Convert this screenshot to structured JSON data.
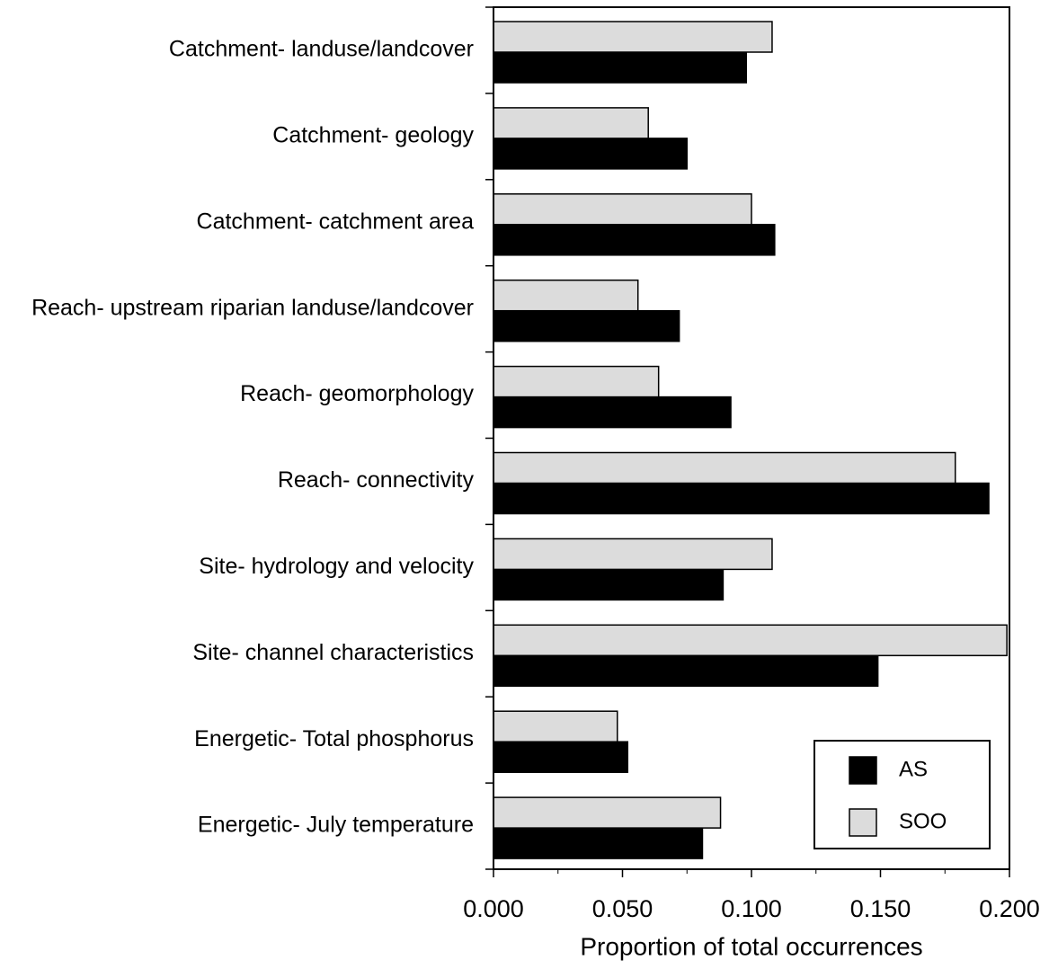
{
  "chart_data": {
    "type": "hbar",
    "xlabel": "Proportion of total occurrences",
    "categories": [
      "Catchment- landuse/landcover",
      "Catchment- geology",
      "Catchment- catchment area",
      "Reach- upstream riparian landuse/landcover",
      "Reach- geomorphology",
      "Reach- connectivity",
      "Site- hydrology and velocity",
      "Site- channel characteristics",
      "Energetic- Total phosphorus",
      "Energetic- July temperature"
    ],
    "series": [
      {
        "name": "AS",
        "color": "#000000",
        "values": [
          0.098,
          0.075,
          0.109,
          0.072,
          0.092,
          0.192,
          0.089,
          0.149,
          0.052,
          0.081
        ]
      },
      {
        "name": "SOO",
        "color": "#dcdcdc",
        "values": [
          0.108,
          0.06,
          0.1,
          0.056,
          0.064,
          0.179,
          0.108,
          0.199,
          0.048,
          0.088
        ]
      }
    ],
    "xlim": [
      0,
      0.2
    ],
    "xticks": [
      {
        "value": 0,
        "label": "0.000"
      },
      {
        "value": 0.05,
        "label": "0.050"
      },
      {
        "value": 0.1,
        "label": "0.100"
      },
      {
        "value": 0.15,
        "label": "0.150"
      },
      {
        "value": 0.2,
        "label": "0.200"
      }
    ],
    "legend": "lower-right"
  }
}
